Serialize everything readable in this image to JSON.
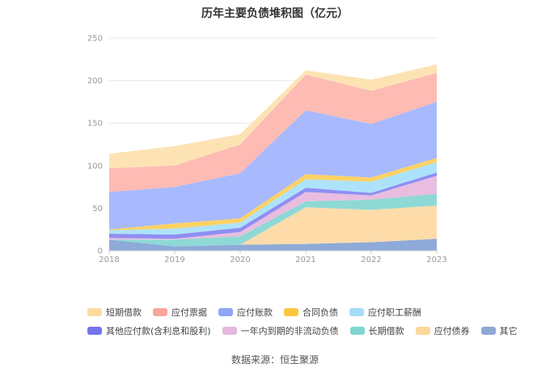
{
  "page": {
    "title": "历年主要负债堆积图（亿元）",
    "source": "数据来源：恒生聚源"
  },
  "chart_data": {
    "type": "area",
    "stacked": true,
    "title": "历年主要负债堆积图（亿元）",
    "x": [
      "2018",
      "2019",
      "2020",
      "2021",
      "2022",
      "2023"
    ],
    "ylim": [
      0,
      250
    ],
    "yticks": [
      0,
      50,
      100,
      150,
      200,
      250
    ],
    "grid": true,
    "legend_position": "bottom",
    "series": [
      {
        "name": "其它",
        "color": "#8eaad8",
        "values": [
          13,
          5,
          7,
          8,
          10,
          14
        ]
      },
      {
        "name": "应付债券",
        "color": "#fddcaa",
        "values": [
          0,
          0,
          0,
          43,
          38,
          39
        ]
      },
      {
        "name": "长期借款",
        "color": "#8ed9d5",
        "values": [
          0,
          8,
          10,
          7,
          12,
          14
        ]
      },
      {
        "name": "一年内到期的非流动负债",
        "color": "#e8bde0",
        "values": [
          2,
          1,
          5,
          11,
          5,
          21
        ]
      },
      {
        "name": "其他应付款(含利息和股利)",
        "color": "#8f8ef2",
        "values": [
          5,
          5,
          5,
          5,
          3,
          4
        ]
      },
      {
        "name": "应付职工薪酬",
        "color": "#ade3fa",
        "values": [
          4,
          7,
          6,
          10,
          13,
          12
        ]
      },
      {
        "name": "合同负债",
        "color": "#fdd264",
        "values": [
          1,
          6,
          5,
          6,
          5,
          5
        ]
      },
      {
        "name": "应付账款",
        "color": "#a8b9fd",
        "values": [
          44,
          43,
          53,
          75,
          63,
          66
        ]
      },
      {
        "name": "应付票据",
        "color": "#fdbbb4",
        "values": [
          28,
          25,
          34,
          42,
          39,
          34
        ]
      },
      {
        "name": "短期借款",
        "color": "#fde3b4",
        "values": [
          17,
          23,
          12,
          5,
          13,
          10
        ]
      }
    ],
    "legend_order": [
      "短期借款",
      "应付票据",
      "应付账款",
      "合同负债",
      "应付职工薪酬",
      "其他应付款(含利息和股利)",
      "一年内到期的非流动负债",
      "长期借款",
      "应付债券",
      "其它"
    ],
    "legend_swatch_colors": {
      "短期借款": "#fddba0",
      "应付票据": "#f9a59b",
      "应付账款": "#8ea6f5",
      "合同负债": "#fcc63e",
      "应付职工薪酬": "#a5dcf6",
      "其他应付款(含利息和股利)": "#7575ee",
      "一年内到期的非流动负债": "#e4b8df",
      "长期借款": "#7fd6d2",
      "应付债券": "#fdd79a",
      "其它": "#8fa9d6"
    }
  }
}
